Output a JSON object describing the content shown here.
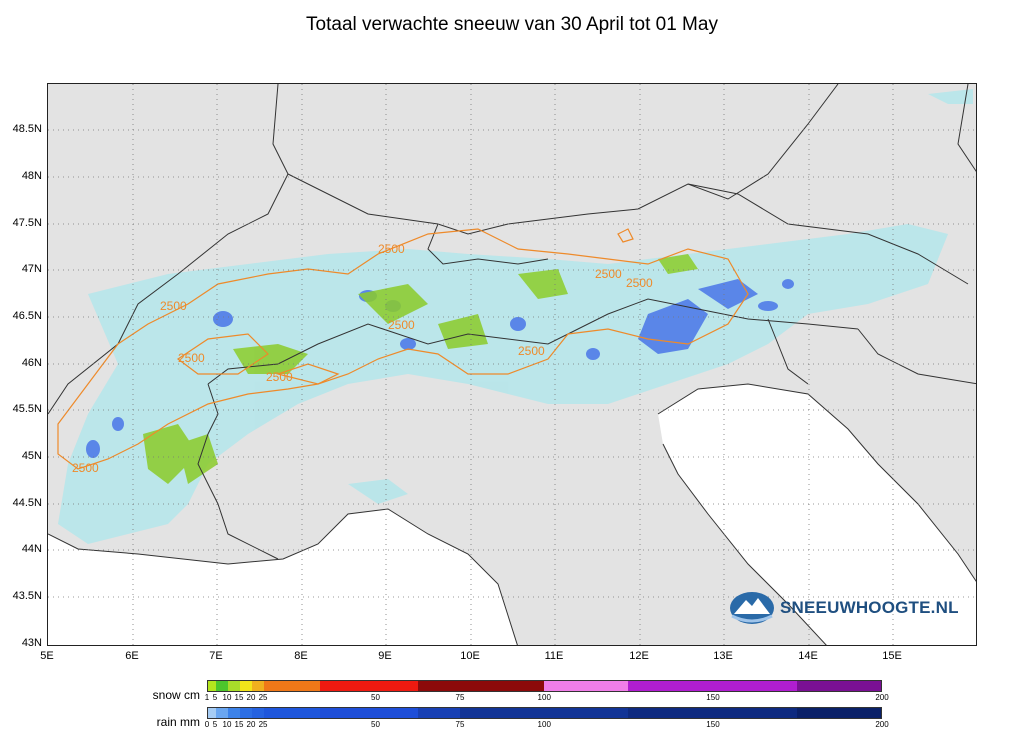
{
  "title": "Totaal verwachte sneeuw van 30 April tot 01 May",
  "lat_labels": [
    "48.5N",
    "48N",
    "47.5N",
    "47N",
    "46.5N",
    "46N",
    "45.5N",
    "45N",
    "44.5N",
    "44N",
    "43.5N",
    "43N"
  ],
  "lon_labels": [
    "5E",
    "6E",
    "7E",
    "8E",
    "9E",
    "10E",
    "11E",
    "12E",
    "13E",
    "14E",
    "15E"
  ],
  "contour_label": "2500",
  "brand": "SNEEUWHOOGTE.NL",
  "legend": {
    "snow_title": "snow cm",
    "rain_title": "rain mm",
    "snow_ticks": [
      "1",
      "5",
      "10",
      "15",
      "20",
      "25",
      "50",
      "75",
      "100",
      "150",
      "200"
    ],
    "rain_ticks": [
      "0",
      "5",
      "10",
      "15",
      "20",
      "25",
      "50",
      "75",
      "100",
      "150",
      "200"
    ],
    "snow_colors": [
      "#b4e61e",
      "#4cc62c",
      "#a8dd2a",
      "#f2e41a",
      "#f0b01e",
      "#f07818",
      "#ee1a10",
      "#ee1a10",
      "#8c0a0a",
      "#8c0a0a",
      "#f07ee8",
      "#b01ed0",
      "#b01ed0",
      "#7a1094"
    ],
    "rain_colors": [
      "#a6ccf4",
      "#6aa6f0",
      "#3c82e8",
      "#2c6ee4",
      "#2562e0",
      "#1e56dc",
      "#1e4ed8",
      "#1e4ed8",
      "#1840b4",
      "#123496",
      "#123496",
      "#0e2a80",
      "#0e2a80",
      "#0a2068"
    ]
  },
  "colors": {
    "land": "#e3e3e3",
    "sea": "#ffffff",
    "rain_light": "#b6e6ea",
    "rain_heavy": "#5a86e8",
    "snow": "#8ccc2a",
    "contour": "#ee8a2a",
    "border": "#333333",
    "grid": "#777777"
  }
}
